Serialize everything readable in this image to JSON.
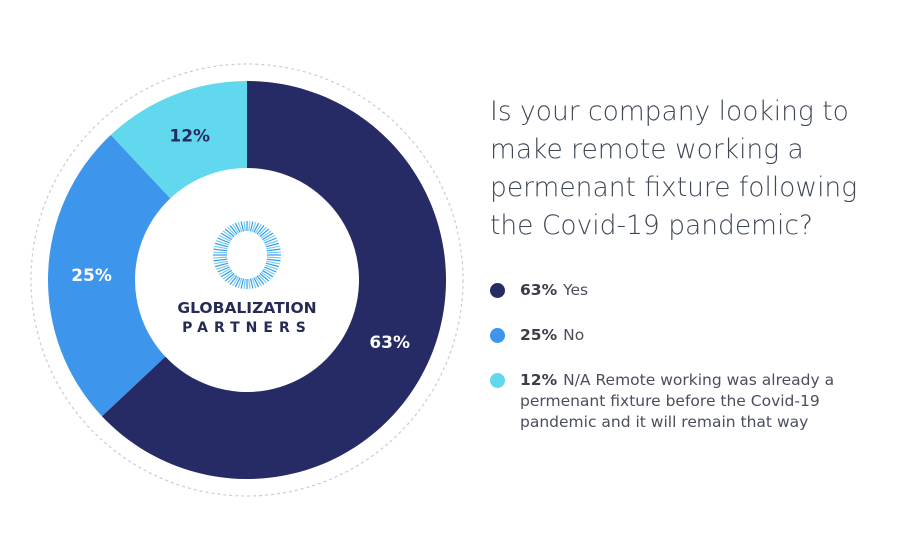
{
  "title": "Is your company looking to make remote working a permenant fixture following the Covid-19 pandemic?",
  "logo": {
    "line1": "GLOBALIZATION",
    "line2": "PARTNERS"
  },
  "chart_data": {
    "type": "pie",
    "variant": "donut",
    "title": "Is your company looking to make remote working a permenant fixture following the Covid-19 pandemic?",
    "categories": [
      "Yes",
      "No",
      "N/A Remote working was already a permenant fixture before the Covid-19 pandemic and it will remain that way"
    ],
    "values": [
      63,
      25,
      12
    ],
    "labels": [
      "63%",
      "25%",
      "12%"
    ],
    "colors": [
      "#262b66",
      "#3d96ec",
      "#62d8ee"
    ],
    "label_colors": [
      "#ffffff",
      "#ffffff",
      "#262b66"
    ],
    "start": "top",
    "direction": "clockwise",
    "legend_placement": "right"
  },
  "legend": [
    {
      "pct": "63%",
      "label": "Yes"
    },
    {
      "pct": "25%",
      "label": "No"
    },
    {
      "pct": "12%",
      "label": "N/A Remote working was already a permenant fixture before the Covid-19 pandemic and it will remain that way"
    }
  ]
}
